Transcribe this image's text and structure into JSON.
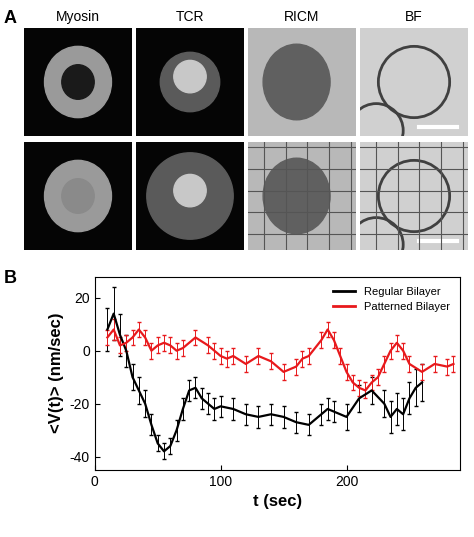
{
  "panel_labels": [
    "A",
    "B"
  ],
  "image_columns": [
    "Myosin",
    "TCR",
    "RICM",
    "BF"
  ],
  "chart_data": {
    "type": "line",
    "xlabel": "t (sec)",
    "ylabel": "<V(t)> (nm/sec)",
    "xlim": [
      0,
      290
    ],
    "xticks": [
      0,
      100,
      200
    ],
    "ylim": [
      -45,
      28
    ],
    "yticks": [
      -40,
      -20,
      0,
      20
    ],
    "legend": "upper right",
    "series": [
      {
        "name": "Regular Bilayer",
        "color": "#000000",
        "x": [
          10,
          15,
          20,
          25,
          30,
          35,
          40,
          45,
          50,
          55,
          60,
          65,
          70,
          75,
          80,
          85,
          90,
          95,
          100,
          110,
          120,
          130,
          140,
          150,
          160,
          170,
          180,
          185,
          190,
          200,
          210,
          220,
          230,
          235,
          240,
          245,
          250,
          255,
          260
        ],
        "values": [
          8,
          14,
          6,
          0,
          -10,
          -15,
          -20,
          -28,
          -35,
          -38,
          -36,
          -30,
          -22,
          -15,
          -14,
          -18,
          -20,
          -22,
          -21,
          -22,
          -24,
          -25,
          -24,
          -25,
          -27,
          -28,
          -24,
          -22,
          -23,
          -25,
          -18,
          -15,
          -20,
          -25,
          -22,
          -24,
          -18,
          -14,
          -12
        ],
        "errors": [
          8,
          10,
          8,
          6,
          5,
          5,
          5,
          4,
          3,
          3,
          3,
          4,
          4,
          4,
          4,
          4,
          4,
          4,
          4,
          4,
          4,
          4,
          4,
          4,
          4,
          4,
          4,
          4,
          4,
          5,
          5,
          5,
          5,
          6,
          6,
          6,
          6,
          7,
          7
        ]
      },
      {
        "name": "Patterned Bilayer",
        "color": "#e8191c",
        "x": [
          10,
          15,
          20,
          25,
          30,
          35,
          40,
          45,
          50,
          55,
          60,
          65,
          70,
          80,
          90,
          95,
          100,
          105,
          110,
          120,
          130,
          140,
          150,
          160,
          165,
          170,
          180,
          185,
          190,
          195,
          200,
          205,
          210,
          215,
          220,
          225,
          230,
          235,
          240,
          245,
          250,
          260,
          270,
          280,
          285
        ],
        "values": [
          5,
          8,
          2,
          3,
          5,
          8,
          5,
          0,
          2,
          3,
          2,
          0,
          1,
          5,
          2,
          0,
          -2,
          -3,
          -2,
          -5,
          -2,
          -4,
          -8,
          -6,
          -3,
          -2,
          4,
          8,
          4,
          -2,
          -8,
          -12,
          -14,
          -15,
          -12,
          -10,
          -5,
          0,
          3,
          0,
          -5,
          -8,
          -5,
          -6,
          -5
        ],
        "errors": [
          3,
          4,
          3,
          3,
          3,
          3,
          3,
          3,
          3,
          3,
          3,
          3,
          3,
          3,
          3,
          3,
          3,
          3,
          3,
          3,
          3,
          3,
          3,
          3,
          3,
          3,
          3,
          3,
          3,
          3,
          3,
          3,
          3,
          3,
          3,
          3,
          3,
          3,
          3,
          3,
          3,
          3,
          3,
          3,
          3
        ]
      }
    ]
  }
}
